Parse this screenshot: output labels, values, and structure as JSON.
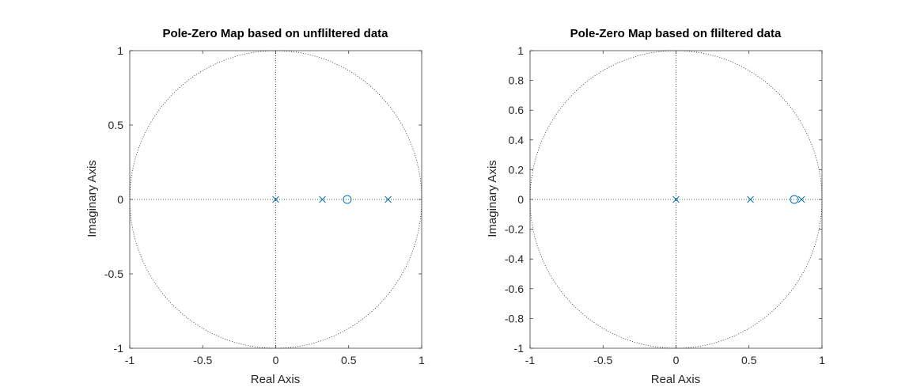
{
  "colors": {
    "marker": "#0072BD",
    "axis": "#262626",
    "grid": "#262626",
    "background": "#ffffff"
  },
  "chart_data": [
    {
      "type": "scatter",
      "title": "Pole-Zero Map based on unfliltered data",
      "xlabel": "Real Axis",
      "ylabel": "Imaginary Axis",
      "xlim": [
        -1,
        1
      ],
      "ylim": [
        -1,
        1
      ],
      "xticks": [
        -1,
        -0.5,
        0,
        0.5,
        1
      ],
      "xtick_labels": [
        "-1",
        "-0.5",
        "0",
        "0.5",
        "1"
      ],
      "yticks": [
        -1,
        -0.5,
        0,
        0.5,
        1
      ],
      "ytick_labels": [
        "-1",
        "-0.5",
        "0",
        "0.5",
        "1"
      ],
      "unit_circle": true,
      "axis_crosshair": true,
      "series": [
        {
          "marker": "x",
          "points": [
            [
              0,
              0
            ],
            [
              0.32,
              0
            ],
            [
              0.77,
              0
            ]
          ]
        },
        {
          "marker": "o",
          "points": [
            [
              0.49,
              0
            ]
          ]
        }
      ]
    },
    {
      "type": "scatter",
      "title": "Pole-Zero Map based on fliltered data",
      "xlabel": "Real Axis",
      "ylabel": "Imaginary Axis",
      "xlim": [
        -1,
        1
      ],
      "ylim": [
        -1,
        1
      ],
      "xticks": [
        -1,
        -0.5,
        0,
        0.5,
        1
      ],
      "xtick_labels": [
        "-1",
        "-0.5",
        "0",
        "0.5",
        "1"
      ],
      "yticks": [
        -1,
        -0.8,
        -0.6,
        -0.4,
        -0.2,
        0,
        0.2,
        0.4,
        0.6,
        0.8,
        1
      ],
      "ytick_labels": [
        "-1",
        "-0.8",
        "-0.6",
        "-0.4",
        "-0.2",
        "0",
        "0.2",
        "0.4",
        "0.6",
        "0.8",
        "1"
      ],
      "unit_circle": true,
      "axis_crosshair": true,
      "series": [
        {
          "marker": "x",
          "points": [
            [
              0,
              0
            ],
            [
              0.51,
              0
            ],
            [
              0.86,
              0
            ]
          ]
        },
        {
          "marker": "o",
          "points": [
            [
              0.81,
              0
            ]
          ]
        }
      ]
    }
  ]
}
